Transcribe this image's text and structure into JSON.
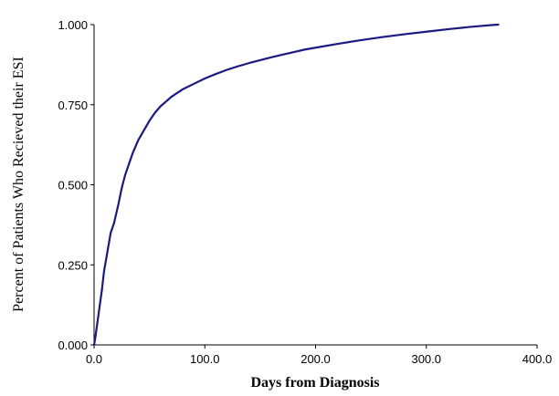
{
  "chart_data": {
    "type": "line",
    "title": "",
    "xlabel": "Days from Diagnosis",
    "ylabel": "Percent of Patients Who Recieved their ESI",
    "xlim": [
      0,
      400
    ],
    "ylim": [
      0,
      1
    ],
    "x_ticks": [
      "0.0",
      "100.0",
      "200.0",
      "300.0",
      "400.0"
    ],
    "y_ticks": [
      "0.000",
      "0.250",
      "0.500",
      "0.750",
      "1.000"
    ],
    "grid": false,
    "legend": "none",
    "line_color": "#1a1a80",
    "series": [
      {
        "x": [
          0,
          1,
          3,
          5,
          7,
          9,
          12,
          15,
          18,
          20,
          22,
          25,
          28,
          30,
          35,
          40,
          45,
          50,
          55,
          60,
          70,
          80,
          90,
          100,
          110,
          120,
          130,
          140,
          150,
          160,
          170,
          180,
          190,
          200,
          220,
          240,
          260,
          280,
          300,
          320,
          340,
          360,
          365
        ],
        "y": [
          0.0,
          0.02,
          0.07,
          0.12,
          0.17,
          0.23,
          0.29,
          0.35,
          0.38,
          0.41,
          0.44,
          0.49,
          0.53,
          0.55,
          0.6,
          0.64,
          0.67,
          0.7,
          0.725,
          0.745,
          0.775,
          0.798,
          0.815,
          0.832,
          0.846,
          0.859,
          0.87,
          0.88,
          0.889,
          0.898,
          0.906,
          0.914,
          0.922,
          0.928,
          0.94,
          0.951,
          0.961,
          0.97,
          0.978,
          0.986,
          0.993,
          0.999,
          1.0
        ]
      }
    ]
  }
}
